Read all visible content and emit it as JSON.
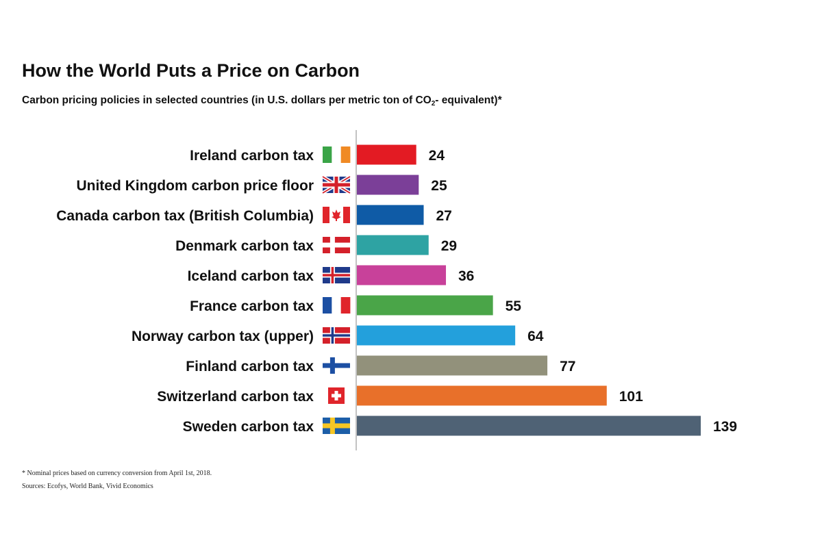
{
  "chart_data": {
    "type": "bar",
    "orientation": "horizontal",
    "title": "How the World Puts a Price on Carbon",
    "subtitle": {
      "before": "Carbon pricing policies in selected countries (in U.S. dollars per metric ton of CO",
      "sub": "2",
      "after": "- equivalent)*"
    },
    "categories": [
      "Ireland carbon tax",
      "United Kingdom carbon price floor",
      "Canada carbon tax (British Columbia)",
      "Denmark carbon tax",
      "Iceland carbon tax",
      "France carbon tax",
      "Norway carbon tax (upper)",
      "Finland carbon tax",
      "Switzerland carbon tax",
      "Sweden carbon tax"
    ],
    "values": [
      24,
      25,
      27,
      29,
      36,
      55,
      64,
      77,
      101,
      139
    ],
    "value_labels": [
      "24",
      "25",
      "27",
      "29",
      "36",
      "55",
      "64",
      "77",
      "101",
      "139"
    ],
    "colors": [
      "#e31b23",
      "#7b3f98",
      "#0f5ba6",
      "#2ea3a3",
      "#c8419a",
      "#4aa548",
      "#23a0dc",
      "#92917b",
      "#e8702a",
      "#4f6275"
    ],
    "flags": [
      "ireland",
      "united-kingdom",
      "canada",
      "denmark",
      "iceland",
      "france",
      "norway",
      "finland",
      "switzerland",
      "sweden"
    ],
    "xlim": [
      0,
      140
    ],
    "grid": false,
    "legend": "none"
  },
  "footnote": "* Nominal prices based on currency conversion from April 1st, 2018.",
  "sources": "Sources: Ecofys, World Bank, Vivid Economics"
}
